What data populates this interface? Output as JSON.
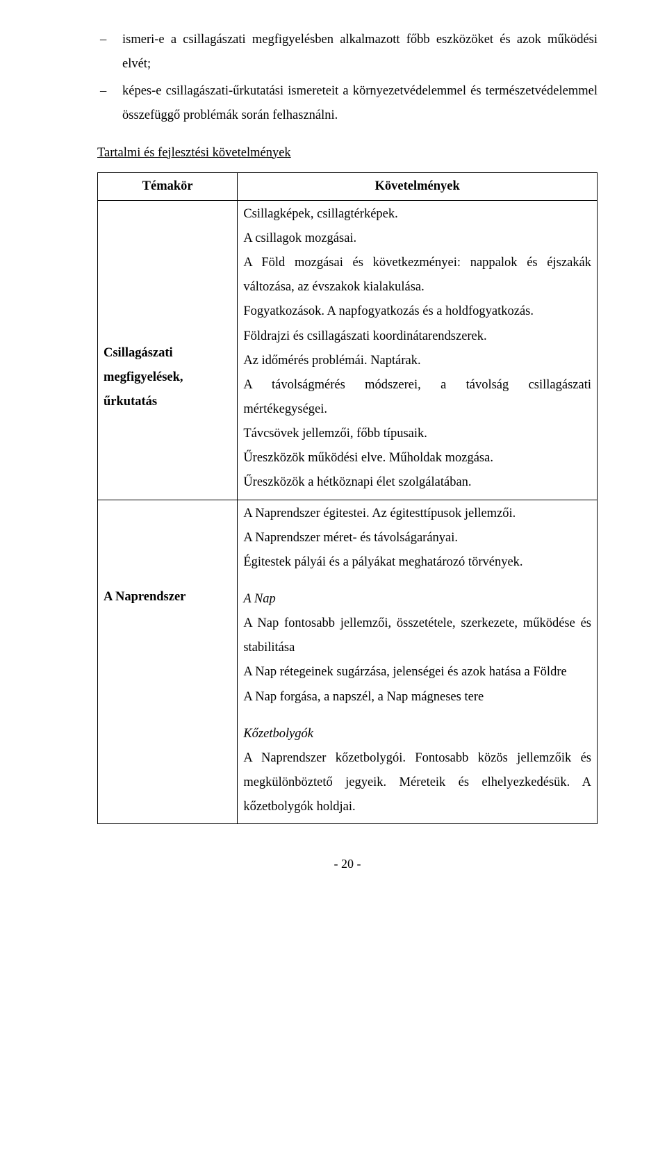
{
  "bullets": [
    "ismeri-e a csillagászati megfigyelésben alkalmazott főbb eszközöket és azok működési elvét;",
    "képes-e csillagászati-űrkutatási ismereteit a környezetvédelemmel és természetvédelemmel összefüggő problémák során felhasználni."
  ],
  "section_heading": "Tartalmi és fejlesztési követelmények",
  "table": {
    "headers": {
      "topic": "Témakör",
      "req": "Követelmények"
    },
    "rows": [
      {
        "topic": "Csillagászati megfigyelések, űrkutatás",
        "lines": [
          "Csillagképek, csillagtérképek.",
          "A csillagok mozgásai.",
          "A Föld mozgásai és következményei: nappalok és éjszakák változása, az évszakok kialakulása.",
          "Fogyatkozások. A napfogyatkozás és a holdfogyatkozás.",
          "Földrajzi és csillagászati koordinátarendszerek.",
          "Az időmérés problémái. Naptárak.",
          "A távolságmérés módszerei, a távolság csillagászati mértékegységei.",
          "Távcsövek jellemzői, főbb típusaik.",
          "Űreszközök működési elve. Műholdak mozgása.",
          "Űreszközök a hétköznapi élet szolgálatában."
        ]
      },
      {
        "topic": "A Naprendszer",
        "intro": [
          "A Naprendszer égitestei. Az égitesttípusok jellemzői.",
          "A Naprendszer méret- és távolságarányai.",
          "Égitestek pályái és a pályákat meghatározó törvények."
        ],
        "groups": [
          {
            "title": "A Nap",
            "lines": [
              "A Nap fontosabb jellemzői, összetétele, szerkezete, működése és stabilitása",
              "A Nap rétegeinek sugárzása, jelenségei és azok hatása a Földre",
              "A Nap forgása, a napszél, a Nap mágneses tere"
            ]
          },
          {
            "title": "Kőzetbolygók",
            "lines": [
              "A Naprendszer kőzetbolygói. Fontosabb közös jellemzőik és megkülönböztető jegyeik. Méreteik és elhelyezkedésük. A kőzetbolygók holdjai."
            ]
          }
        ]
      }
    ]
  },
  "page_number": "- 20 -"
}
